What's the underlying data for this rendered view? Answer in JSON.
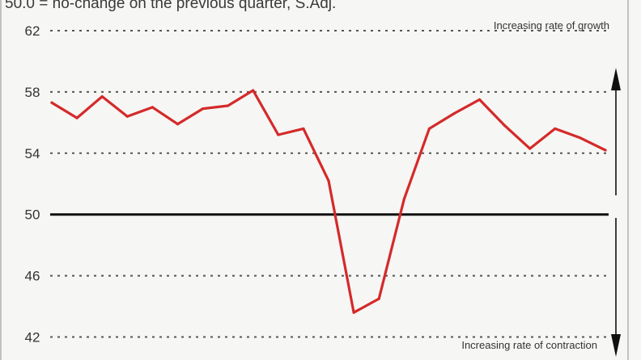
{
  "chart_data": {
    "type": "line",
    "subtitle": "50.0 = no-change on the previous quarter, S.Adj.",
    "annotations": {
      "top": "Increasing rate of growth",
      "bottom": "Increasing rate of contraction"
    },
    "yticks": [
      "62",
      "58",
      "54",
      "50",
      "46",
      "42"
    ],
    "ylim": [
      40.5,
      64
    ],
    "reference_line": 50,
    "grid": "dotted horizontal",
    "legend": "none",
    "colors": {
      "line": "#d42a2a",
      "reference": "#111111",
      "grid": "#555555",
      "frame": "#c2c2c2"
    },
    "series": [
      {
        "x": [
          0,
          1,
          2,
          3,
          4,
          5,
          6,
          7,
          8,
          9,
          10,
          11,
          12,
          13,
          14,
          15,
          16,
          17,
          18,
          19,
          20,
          21,
          22
        ],
        "values": [
          57.3,
          56.3,
          57.7,
          56.4,
          57.0,
          55.9,
          56.9,
          57.1,
          58.1,
          55.2,
          55.6,
          52.2,
          43.6,
          44.5,
          51.0,
          55.6,
          56.6,
          57.5,
          55.8,
          54.3,
          55.6,
          55.0,
          54.2
        ]
      }
    ]
  }
}
